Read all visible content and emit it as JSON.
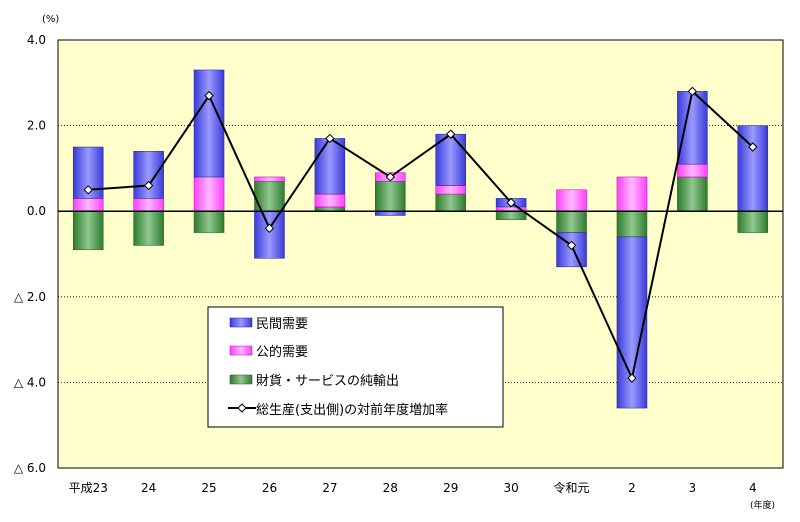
{
  "chart_data": {
    "type": "bar",
    "stacked": true,
    "y_unit_label": "(%)",
    "x_unit_label": "(年度)",
    "categories": [
      "平成23",
      "24",
      "25",
      "26",
      "27",
      "28",
      "29",
      "30",
      "令和元",
      "2",
      "3",
      "4"
    ],
    "ylim": [
      -6.0,
      4.0
    ],
    "yticks": [
      {
        "value": 4.0,
        "label": "4.0"
      },
      {
        "value": 2.0,
        "label": "2.0"
      },
      {
        "value": 0.0,
        "label": "0.0"
      },
      {
        "value": -2.0,
        "label": "△ 2.0"
      },
      {
        "value": -4.0,
        "label": "△ 4.0"
      },
      {
        "value": -6.0,
        "label": "△ 6.0"
      }
    ],
    "series": [
      {
        "name": "民間需要",
        "kind": "bar",
        "color": "#6a6af0",
        "values": [
          1.2,
          1.1,
          2.5,
          -1.1,
          1.3,
          -0.1,
          1.2,
          0.2,
          -0.8,
          -4.0,
          1.7,
          2.0
        ]
      },
      {
        "name": "公的需要",
        "kind": "bar",
        "color": "#ff80ff",
        "values": [
          0.3,
          0.3,
          0.8,
          0.1,
          0.3,
          0.2,
          0.2,
          0.1,
          0.5,
          0.8,
          0.3,
          0.0
        ]
      },
      {
        "name": "財貨・サービスの純輸出",
        "kind": "bar",
        "color": "#4f9a4f",
        "values": [
          -0.9,
          -0.8,
          -0.5,
          0.7,
          0.1,
          0.7,
          0.4,
          -0.2,
          -0.5,
          -0.6,
          0.8,
          -0.5
        ]
      },
      {
        "name": "総生産(支出側)の対前年度増加率",
        "kind": "line",
        "color": "#000000",
        "values": [
          0.5,
          0.6,
          2.7,
          -0.4,
          1.7,
          0.8,
          1.8,
          0.2,
          -0.8,
          -3.9,
          2.8,
          1.5
        ]
      }
    ],
    "grid": true,
    "legend_position": "bottom-center",
    "colors": {
      "plot_bg": "#ffffcc",
      "grid": "#000000"
    }
  }
}
